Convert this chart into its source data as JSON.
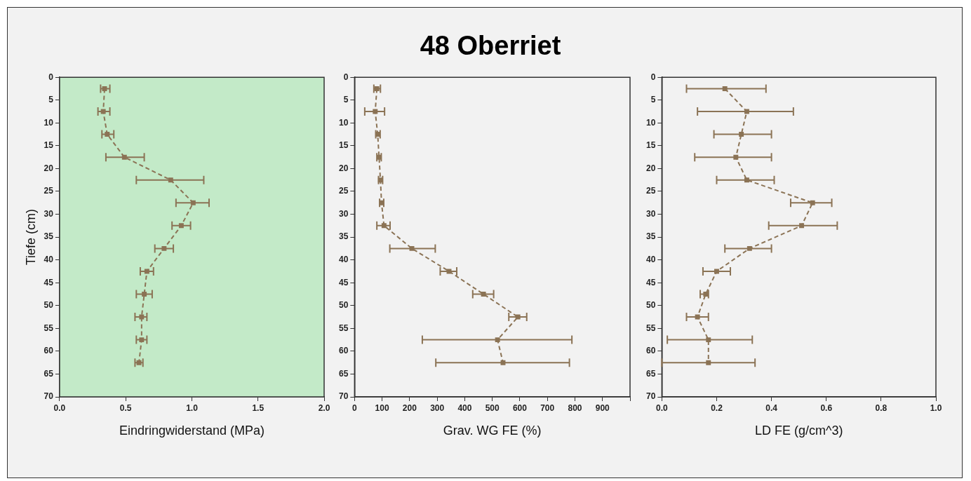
{
  "chart_data": [
    {
      "type": "line",
      "xlabel": "Eindringwiderstand (MPa)",
      "ylabel": "Tiefe (cm)",
      "xlim": [
        0,
        2
      ],
      "xticks": [
        {
          "value": 0,
          "label": "0.0"
        },
        {
          "value": 0.5,
          "label": "0.5"
        },
        {
          "value": 1,
          "label": "1.0"
        },
        {
          "value": 1.5,
          "label": "1.5"
        },
        {
          "value": 2,
          "label": "2.0"
        }
      ],
      "ylim": [
        70,
        0
      ],
      "yticks": [
        0,
        5,
        10,
        15,
        20,
        25,
        30,
        35,
        40,
        45,
        50,
        55,
        60,
        65,
        70
      ],
      "marker": "square",
      "line_style": "dashed",
      "legend": false,
      "grid": false,
      "bands": [
        {
          "axis": "x",
          "from": 0,
          "to": 2,
          "color": "#c3eac8"
        }
      ],
      "series": [
        {
          "color": "#8b7355",
          "x": [
            0.34,
            0.33,
            0.36,
            0.49,
            0.84,
            1.01,
            0.92,
            0.79,
            0.66,
            0.64,
            0.62,
            0.62,
            0.6
          ],
          "values": [
            2.5,
            7.5,
            12.5,
            17.5,
            22.5,
            27.5,
            32.5,
            37.5,
            42.5,
            47.5,
            52.5,
            57.5,
            62.5
          ],
          "xerrors": [
            [
              0.31,
              0.38
            ],
            [
              0.29,
              0.38
            ],
            [
              0.32,
              0.41
            ],
            [
              0.35,
              0.64
            ],
            [
              0.58,
              1.09
            ],
            [
              0.88,
              1.13
            ],
            [
              0.85,
              0.99
            ],
            [
              0.72,
              0.86
            ],
            [
              0.61,
              0.71
            ],
            [
              0.58,
              0.7
            ],
            [
              0.57,
              0.66
            ],
            [
              0.58,
              0.66
            ],
            [
              0.57,
              0.63
            ]
          ]
        }
      ]
    },
    {
      "type": "line",
      "title": "48 Oberriet",
      "xlabel": "Grav. WG FE (%)",
      "xlim": [
        0,
        1000
      ],
      "xticks": [
        0,
        100,
        200,
        300,
        400,
        500,
        600,
        700,
        800,
        900,
        {
          "value": 1000,
          "label": null
        }
      ],
      "ylim": [
        70,
        0
      ],
      "yticks": [
        0,
        5,
        10,
        15,
        20,
        25,
        30,
        35,
        40,
        45,
        50,
        55,
        60,
        65,
        70
      ],
      "marker": "square",
      "line_style": "dashed",
      "legend": false,
      "grid": false,
      "series": [
        {
          "color": "#8b7355",
          "x": [
            81,
            75,
            84,
            89,
            94,
            98,
            107,
            208,
            343,
            468,
            593,
            519,
            539
          ],
          "values": [
            2.5,
            7.5,
            12.5,
            17.5,
            22.5,
            27.5,
            32.5,
            37.5,
            42.5,
            47.5,
            52.5,
            57.5,
            62.5
          ],
          "xerrors": [
            [
              70,
              94
            ],
            [
              37,
              109
            ],
            [
              77,
              93
            ],
            [
              81,
              97
            ],
            [
              87,
              102
            ],
            [
              91,
              106
            ],
            [
              81,
              129
            ],
            [
              128,
              293
            ],
            [
              311,
              371
            ],
            [
              429,
              505
            ],
            [
              560,
              625
            ],
            [
              246,
              789
            ],
            [
              295,
              780
            ]
          ]
        }
      ]
    },
    {
      "type": "line",
      "xlabel": "LD FE (g/cm^3)",
      "xlim": [
        0,
        1
      ],
      "xticks": [
        {
          "value": 0,
          "label": "0.0"
        },
        {
          "value": 0.2,
          "label": "0.2"
        },
        {
          "value": 0.4,
          "label": "0.4"
        },
        {
          "value": 0.6,
          "label": "0.6"
        },
        {
          "value": 0.8,
          "label": "0.8"
        },
        {
          "value": 1,
          "label": "1.0"
        }
      ],
      "ylim": [
        70,
        0
      ],
      "yticks": [
        0,
        5,
        10,
        15,
        20,
        25,
        30,
        35,
        40,
        45,
        50,
        55,
        60,
        65,
        70
      ],
      "marker": "square",
      "line_style": "dashed",
      "legend": false,
      "grid": false,
      "series": [
        {
          "color": "#8b7355",
          "x": [
            0.23,
            0.31,
            0.29,
            0.27,
            0.31,
            0.55,
            0.51,
            0.32,
            0.2,
            0.16,
            0.13,
            0.17,
            0.17
          ],
          "values": [
            2.5,
            7.5,
            12.5,
            17.5,
            22.5,
            27.5,
            32.5,
            37.5,
            42.5,
            47.5,
            52.5,
            57.5,
            62.5
          ],
          "xerrors": [
            [
              0.09,
              0.38
            ],
            [
              0.13,
              0.48
            ],
            [
              0.19,
              0.4
            ],
            [
              0.12,
              0.4
            ],
            [
              0.2,
              0.41
            ],
            [
              0.47,
              0.62
            ],
            [
              0.39,
              0.64
            ],
            [
              0.23,
              0.4
            ],
            [
              0.15,
              0.25
            ],
            [
              0.14,
              0.17
            ],
            [
              0.09,
              0.17
            ],
            [
              0.02,
              0.33
            ],
            [
              0.0,
              0.34
            ]
          ]
        }
      ]
    }
  ]
}
